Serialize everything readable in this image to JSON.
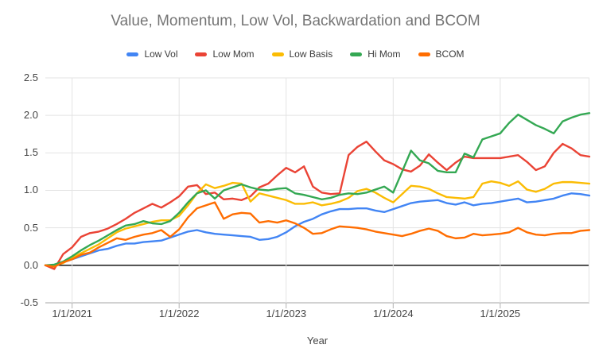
{
  "chart_data": {
    "type": "line",
    "title": "Value, Momentum, Low Vol, Backwardation and BCOM",
    "xlabel": "Year",
    "ylabel": "",
    "ylim": [
      -0.5,
      2.5
    ],
    "grid": true,
    "legend_position": "top",
    "y_tick_labels": [
      "2.5",
      "2.0",
      "1.5",
      "1.0",
      "0.5",
      "0.0",
      "-0.5"
    ],
    "x_tick_labels": [
      "1/1/2021",
      "1/1/2022",
      "1/1/2023",
      "1/1/2024",
      "1/1/2025"
    ],
    "x_tick_indices": [
      3,
      15,
      27,
      39,
      51
    ],
    "x": [
      "10/2020",
      "11/2020",
      "12/2020",
      "1/2021",
      "2/2021",
      "3/2021",
      "4/2021",
      "5/2021",
      "6/2021",
      "7/2021",
      "8/2021",
      "9/2021",
      "10/2021",
      "11/2021",
      "12/2021",
      "1/2022",
      "2/2022",
      "3/2022",
      "4/2022",
      "5/2022",
      "6/2022",
      "7/2022",
      "8/2022",
      "9/2022",
      "10/2022",
      "11/2022",
      "12/2022",
      "1/2023",
      "2/2023",
      "3/2023",
      "4/2023",
      "5/2023",
      "6/2023",
      "7/2023",
      "8/2023",
      "9/2023",
      "10/2023",
      "11/2023",
      "12/2023",
      "1/2024",
      "2/2024",
      "3/2024",
      "4/2024",
      "5/2024",
      "6/2024",
      "7/2024",
      "8/2024",
      "9/2024",
      "10/2024",
      "11/2024",
      "12/2024",
      "1/2025",
      "2/2025",
      "3/2025",
      "4/2025",
      "5/2025",
      "6/2025",
      "7/2025",
      "8/2025",
      "9/2025",
      "10/2025",
      "11/2025"
    ],
    "series": [
      {
        "name": "Low Vol",
        "color": "#4285F4",
        "values": [
          0.0,
          0.0,
          0.04,
          0.08,
          0.12,
          0.16,
          0.2,
          0.22,
          0.26,
          0.29,
          0.29,
          0.31,
          0.32,
          0.33,
          0.37,
          0.41,
          0.45,
          0.47,
          0.44,
          0.42,
          0.41,
          0.4,
          0.39,
          0.38,
          0.34,
          0.35,
          0.38,
          0.44,
          0.52,
          0.58,
          0.62,
          0.68,
          0.72,
          0.75,
          0.75,
          0.76,
          0.76,
          0.73,
          0.71,
          0.75,
          0.79,
          0.83,
          0.85,
          0.86,
          0.87,
          0.83,
          0.81,
          0.84,
          0.8,
          0.82,
          0.83,
          0.85,
          0.87,
          0.89,
          0.84,
          0.85,
          0.87,
          0.89,
          0.93,
          0.96,
          0.95,
          0.93
        ]
      },
      {
        "name": "Low Mom",
        "color": "#EA4335",
        "values": [
          0.0,
          -0.05,
          0.15,
          0.24,
          0.38,
          0.43,
          0.45,
          0.49,
          0.55,
          0.62,
          0.7,
          0.76,
          0.82,
          0.77,
          0.84,
          0.92,
          1.05,
          1.07,
          0.95,
          0.97,
          0.88,
          0.89,
          0.87,
          0.92,
          1.04,
          1.09,
          1.2,
          1.3,
          1.24,
          1.32,
          1.05,
          0.97,
          0.95,
          0.96,
          1.47,
          1.58,
          1.65,
          1.52,
          1.4,
          1.35,
          1.28,
          1.25,
          1.33,
          1.48,
          1.37,
          1.27,
          1.37,
          1.45,
          1.43,
          1.43,
          1.43,
          1.43,
          1.45,
          1.47,
          1.38,
          1.27,
          1.32,
          1.5,
          1.62,
          1.56,
          1.47,
          1.45
        ]
      },
      {
        "name": "Low Basis",
        "color": "#FBBC04",
        "values": [
          0.0,
          0.0,
          0.03,
          0.1,
          0.16,
          0.22,
          0.28,
          0.36,
          0.44,
          0.49,
          0.52,
          0.55,
          0.58,
          0.6,
          0.6,
          0.66,
          0.8,
          0.96,
          1.08,
          1.03,
          1.06,
          1.1,
          1.09,
          0.85,
          0.96,
          0.93,
          0.9,
          0.87,
          0.82,
          0.82,
          0.84,
          0.8,
          0.82,
          0.85,
          0.9,
          0.99,
          1.02,
          0.97,
          0.9,
          0.84,
          0.95,
          1.06,
          1.05,
          1.02,
          0.96,
          0.91,
          0.9,
          0.89,
          0.91,
          1.09,
          1.12,
          1.1,
          1.06,
          1.12,
          1.01,
          0.98,
          1.02,
          1.09,
          1.11,
          1.11,
          1.1,
          1.09
        ]
      },
      {
        "name": "Hi Mom",
        "color": "#34A853",
        "values": [
          0.0,
          0.01,
          0.05,
          0.12,
          0.2,
          0.27,
          0.33,
          0.4,
          0.47,
          0.53,
          0.55,
          0.59,
          0.56,
          0.55,
          0.59,
          0.7,
          0.84,
          0.96,
          1.0,
          0.89,
          1.0,
          1.04,
          1.08,
          1.04,
          1.01,
          1.0,
          1.02,
          1.03,
          0.96,
          0.94,
          0.91,
          0.88,
          0.9,
          0.94,
          0.96,
          0.95,
          0.97,
          1.01,
          1.05,
          0.97,
          1.25,
          1.53,
          1.4,
          1.36,
          1.26,
          1.24,
          1.24,
          1.49,
          1.44,
          1.68,
          1.72,
          1.76,
          1.9,
          2.01,
          1.94,
          1.87,
          1.82,
          1.76,
          1.92,
          1.97,
          2.01,
          2.03
        ]
      },
      {
        "name": "BCOM",
        "color": "#FF6D01",
        "values": [
          0.0,
          -0.02,
          0.04,
          0.08,
          0.14,
          0.17,
          0.24,
          0.3,
          0.36,
          0.34,
          0.38,
          0.41,
          0.43,
          0.47,
          0.38,
          0.48,
          0.64,
          0.76,
          0.8,
          0.84,
          0.62,
          0.68,
          0.7,
          0.69,
          0.57,
          0.59,
          0.57,
          0.6,
          0.56,
          0.5,
          0.42,
          0.43,
          0.48,
          0.52,
          0.51,
          0.5,
          0.48,
          0.45,
          0.43,
          0.41,
          0.39,
          0.42,
          0.46,
          0.49,
          0.46,
          0.39,
          0.36,
          0.37,
          0.42,
          0.4,
          0.41,
          0.42,
          0.44,
          0.5,
          0.44,
          0.41,
          0.4,
          0.42,
          0.43,
          0.43,
          0.46,
          0.47
        ]
      }
    ],
    "palette": {
      "title_gray": "#757575",
      "axis_text": "#444444",
      "legend_text": "#3c3c3c",
      "gridline": "#e3e3e3",
      "zero_line": "#000000",
      "baseline": "#a6a6a6"
    }
  }
}
